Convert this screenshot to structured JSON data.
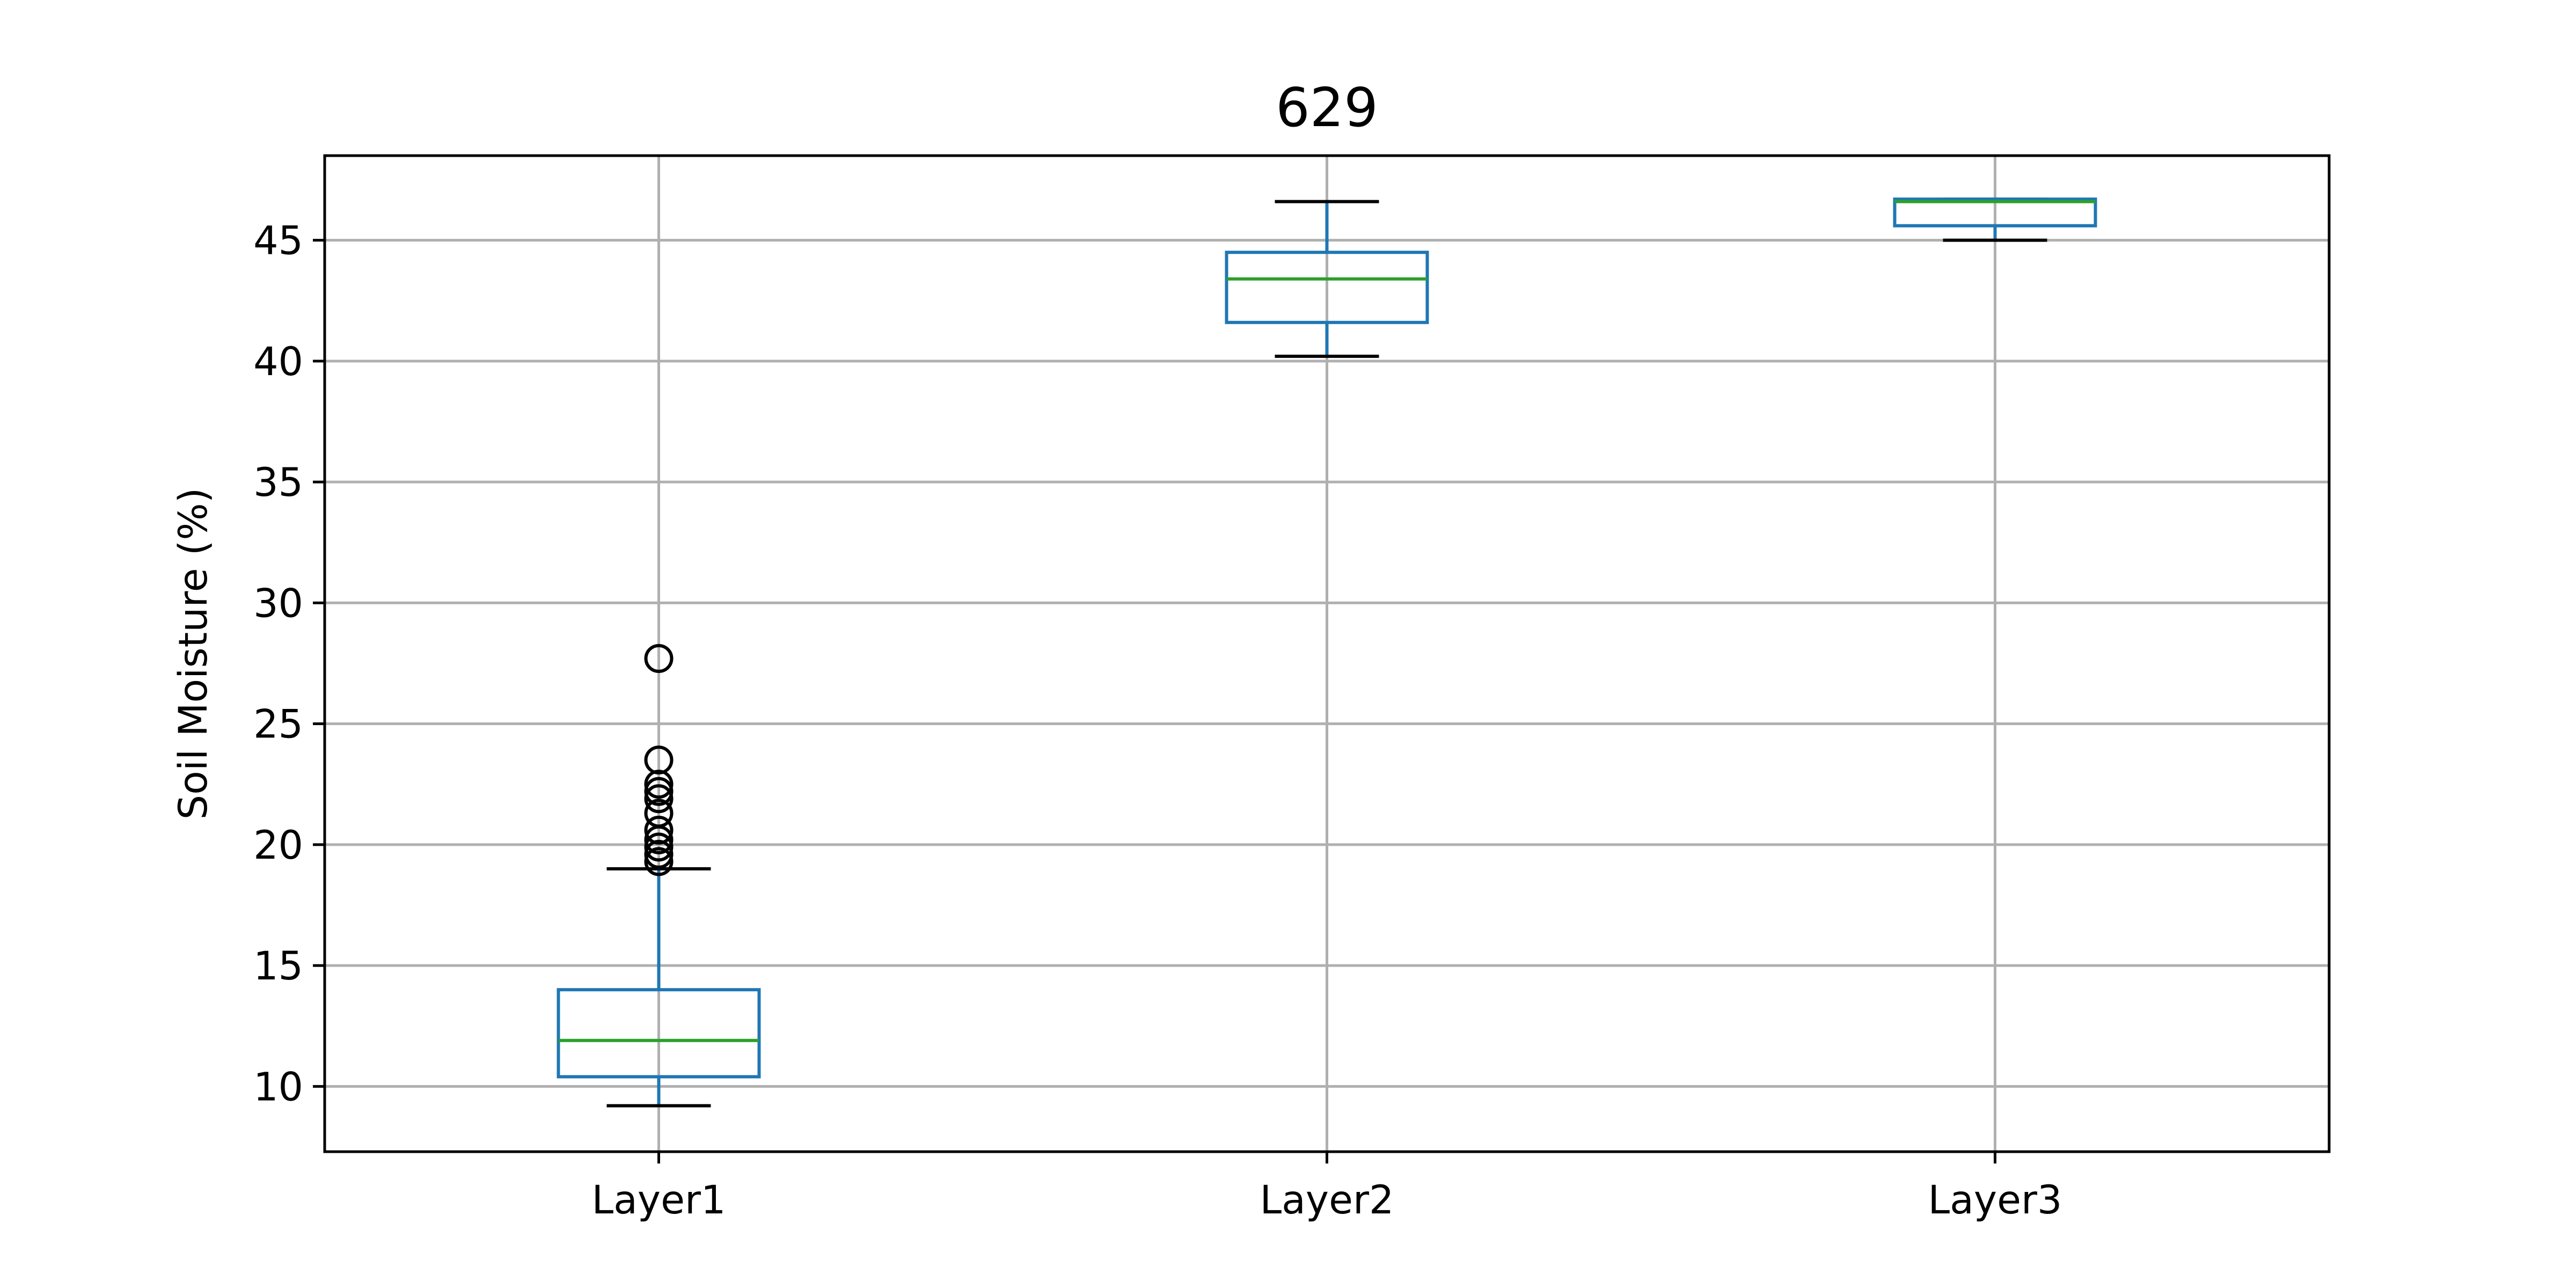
{
  "chart_data": {
    "type": "box",
    "title": "629",
    "xlabel": "",
    "ylabel": "Soil Moisture (%)",
    "ylim": [
      7.3,
      48.5
    ],
    "yticks": [
      10,
      15,
      20,
      25,
      30,
      35,
      40,
      45
    ],
    "grid": true,
    "categories": [
      "Layer1",
      "Layer2",
      "Layer3"
    ],
    "boxes": [
      {
        "name": "Layer1",
        "whisker_low": 9.2,
        "q1": 10.4,
        "median": 11.9,
        "q3": 14.0,
        "whisker_high": 19.0,
        "outliers": [
          19.3,
          19.6,
          19.9,
          20.2,
          20.6,
          21.3,
          21.9,
          22.2,
          22.5,
          23.5,
          27.7
        ]
      },
      {
        "name": "Layer2",
        "whisker_low": 40.2,
        "q1": 41.6,
        "median": 43.4,
        "q3": 44.5,
        "whisker_high": 46.6,
        "outliers": []
      },
      {
        "name": "Layer3",
        "whisker_low": 45.0,
        "q1": 45.6,
        "median": 46.6,
        "q3": 46.7,
        "whisker_high": 46.7,
        "outliers": []
      }
    ],
    "colors": {
      "box": "#1f77b4",
      "median": "#2ca02c",
      "whisker_cap": "#000000",
      "outlier": "#000000",
      "grid": "#b0b0b0",
      "frame": "#000000"
    }
  }
}
